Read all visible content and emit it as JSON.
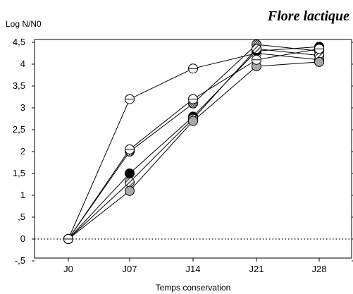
{
  "chart_data": {
    "type": "line",
    "title": "Flore lactique",
    "xlabel": "Temps conservation",
    "ylabel": "Log N/N0",
    "categories": [
      "J0",
      "J07",
      "J14",
      "J21",
      "J28"
    ],
    "ylim": [
      -0.5,
      4.5
    ],
    "yticks": [
      {
        "value": 4.5,
        "label": "4,5"
      },
      {
        "value": 4,
        "label": "4"
      },
      {
        "value": 3.5,
        "label": "3,5"
      },
      {
        "value": 3,
        "label": "3"
      },
      {
        "value": 2.5,
        "label": "2,5"
      },
      {
        "value": 2,
        "label": "2"
      },
      {
        "value": 1.5,
        "label": "1,5"
      },
      {
        "value": 1,
        "label": "1"
      },
      {
        "value": 0.5,
        "label": ",5"
      },
      {
        "value": 0,
        "label": "0"
      },
      {
        "value": -0.5,
        "label": "-,5"
      }
    ],
    "reference_line": {
      "y": 0,
      "style": "dotted"
    },
    "grid": false,
    "series": [
      {
        "marker": "open-circle-hline",
        "values": [
          0,
          3.2,
          3.9,
          4.25,
          4.1
        ]
      },
      {
        "marker": "black-circle",
        "values": [
          0,
          1.5,
          2.8,
          4.3,
          4.4
        ]
      },
      {
        "marker": "checkered-circle",
        "values": [
          0,
          2.0,
          3.1,
          4.45,
          4.3
        ]
      },
      {
        "marker": "hatched-circle",
        "values": [
          0,
          1.3,
          2.75,
          4.35,
          4.2
        ]
      },
      {
        "marker": "gray-circle",
        "values": [
          0,
          1.1,
          2.7,
          3.95,
          4.05
        ]
      },
      {
        "marker": "open-circle-hline",
        "values": [
          0,
          2.05,
          3.2,
          4.1,
          4.35
        ]
      }
    ]
  }
}
